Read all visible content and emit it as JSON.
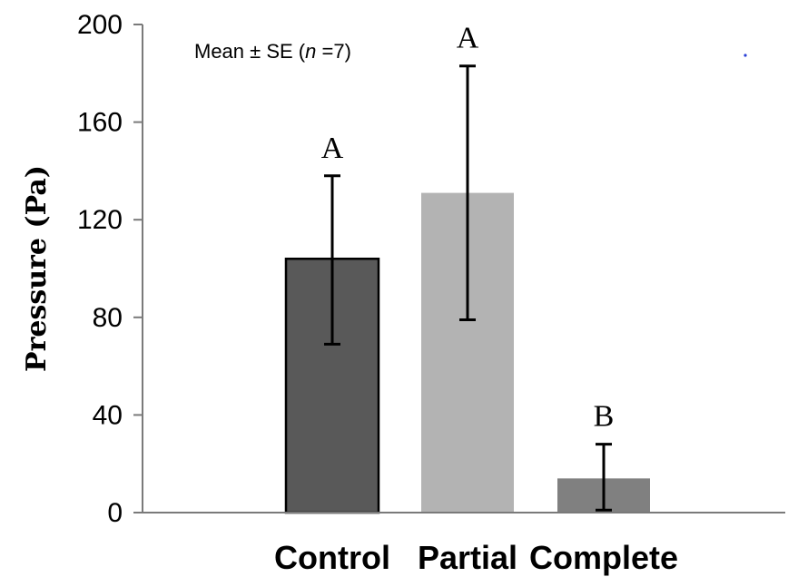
{
  "chart_data": {
    "type": "bar",
    "ylabel": "Pressure (Pa)",
    "xlabel": "",
    "ylim": [
      0,
      200
    ],
    "yticks": [
      "0",
      "40",
      "80",
      "120",
      "160",
      "200"
    ],
    "categories": [
      "Control",
      "Partial",
      "Complete"
    ],
    "values": [
      104,
      131,
      14
    ],
    "error_upper": [
      138,
      183,
      28
    ],
    "error_lower": [
      69,
      79,
      1
    ],
    "significance": [
      "A",
      "A",
      "B"
    ],
    "colors": [
      "#595959",
      "#b3b3b3",
      "#808080"
    ],
    "annotation": {
      "prefix": "Mean ± SE (",
      "n_symbol": "n",
      "suffix": " =7)"
    }
  }
}
